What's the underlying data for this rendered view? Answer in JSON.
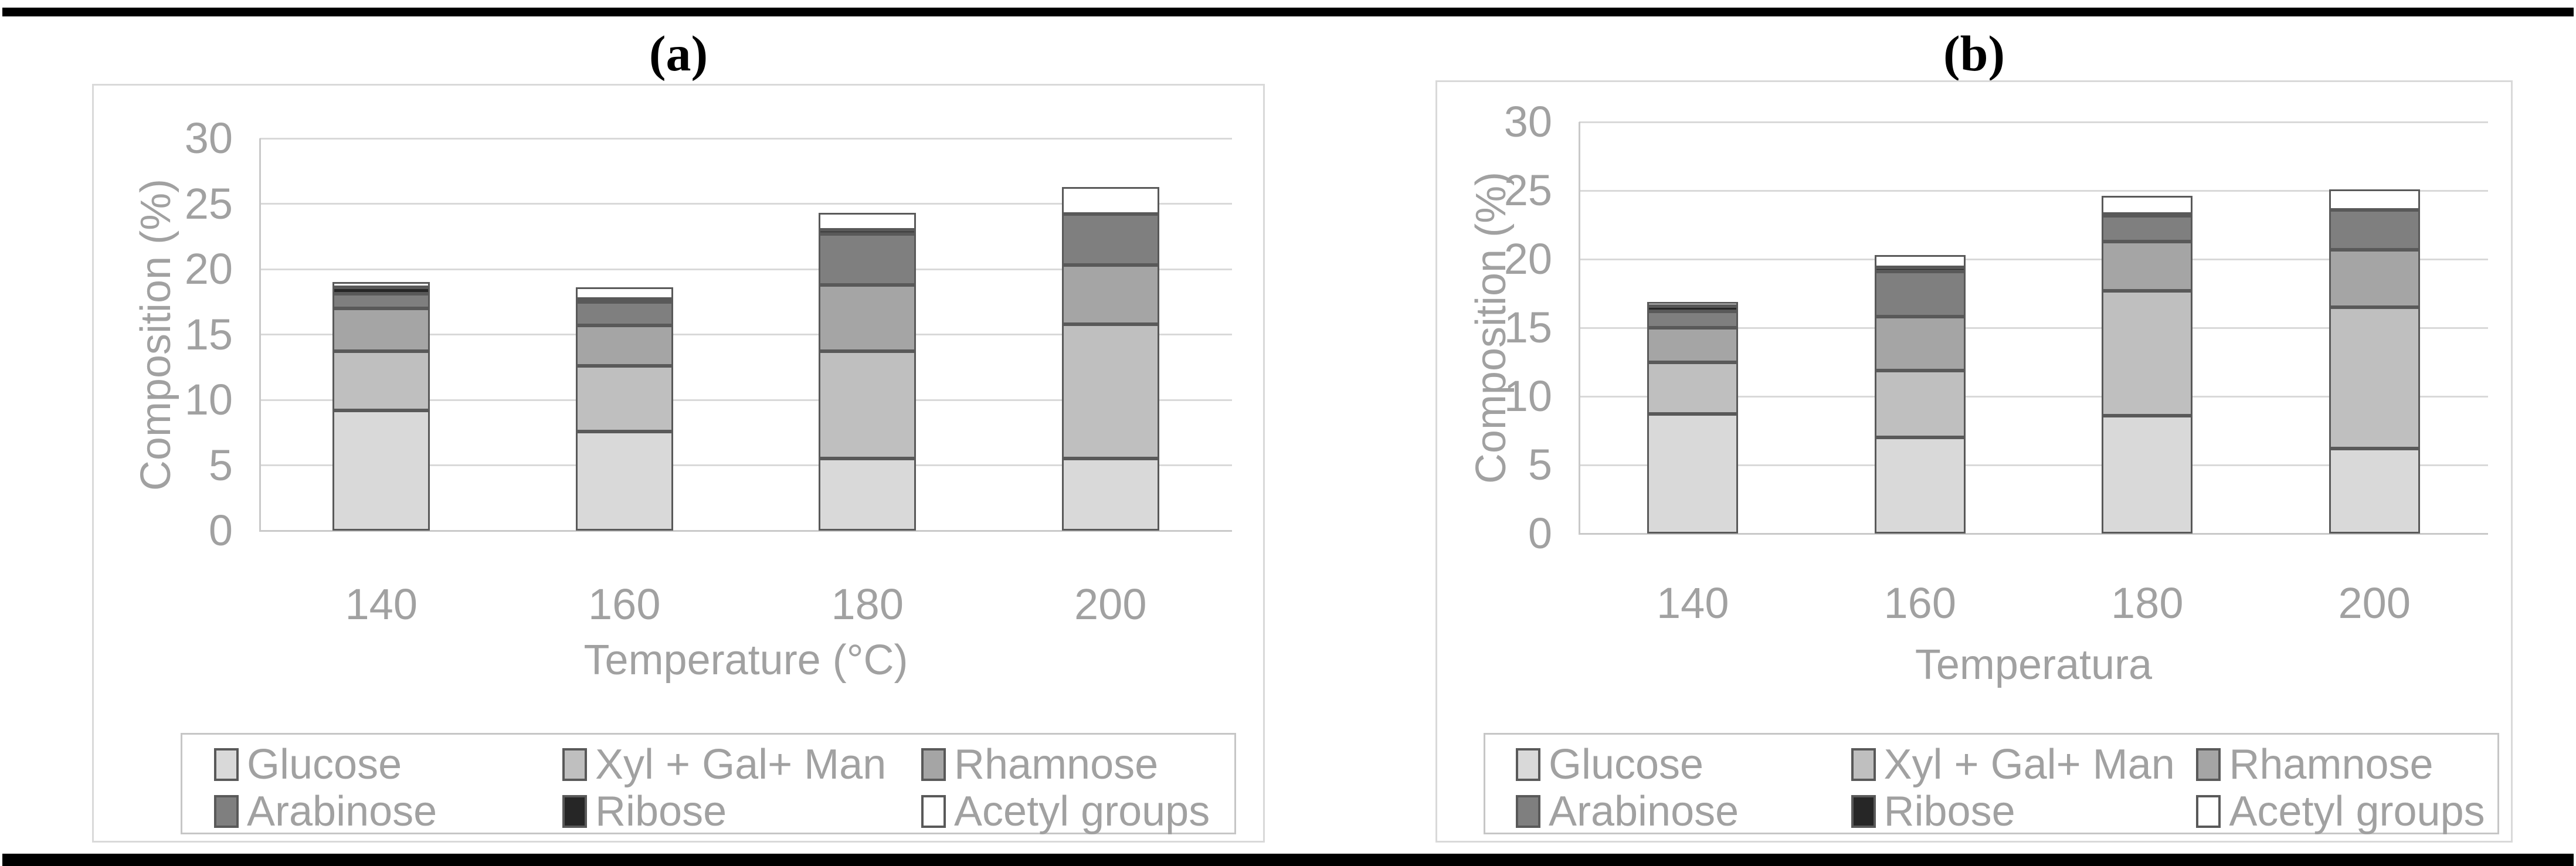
{
  "figure": {
    "background": "#ffffff",
    "top_rule_color": "#000000",
    "bottom_rule_color": "#000000",
    "text_color": "#a1a1a1"
  },
  "colors": {
    "segment_border": "#595959",
    "gridline": "#d9d9d9",
    "axis_line": "#c9c9c9",
    "panel_border": "#d9d9d9",
    "legend_border": "#c6c6c6",
    "panel_title_color": "#000000"
  },
  "chart_data": [
    {
      "type": "bar",
      "stacked": true,
      "panel_label": "(a)",
      "xlabel": "Temperature (°C)",
      "ylabel": "Composition (%)",
      "categories": [
        "140",
        "160",
        "180",
        "200"
      ],
      "ylim": [
        0,
        30
      ],
      "yticks": [
        0,
        5,
        10,
        15,
        20,
        25,
        30
      ],
      "grid": true,
      "legend_position": "bottom",
      "legend_columns": 3,
      "series": [
        {
          "name": "Glucose",
          "color": "#d9d9d9",
          "values": [
            9.2,
            7.6,
            5.5,
            5.5
          ]
        },
        {
          "name": "Xyl + Gal+ Man",
          "color": "#bfbfbf",
          "values": [
            4.5,
            5.0,
            8.2,
            10.3
          ]
        },
        {
          "name": "Rhamnose",
          "color": "#a5a5a5",
          "values": [
            3.3,
            3.1,
            5.1,
            4.5
          ]
        },
        {
          "name": "Arabinose",
          "color": "#7f7f7f",
          "values": [
            1.1,
            1.8,
            3.9,
            3.9
          ]
        },
        {
          "name": "Ribose",
          "color": "#262626",
          "values": [
            0.5,
            0.2,
            0.3,
            0
          ]
        },
        {
          "name": "Acetyl groups",
          "color": "#ffffff",
          "values": [
            0.4,
            0.9,
            1.3,
            2.1
          ]
        }
      ],
      "bar_totals": [
        19.0,
        18.6,
        24.3,
        26.3
      ]
    },
    {
      "type": "bar",
      "stacked": true,
      "panel_label": "(b)",
      "xlabel": "Temperatura",
      "ylabel": "Composition (%)",
      "categories": [
        "140",
        "160",
        "180",
        "200"
      ],
      "ylim": [
        0,
        30
      ],
      "yticks": [
        0,
        5,
        10,
        15,
        20,
        25,
        30
      ],
      "grid": true,
      "legend_position": "bottom",
      "legend_columns": 3,
      "series": [
        {
          "name": "Glucose",
          "color": "#d9d9d9",
          "values": [
            8.7,
            7.0,
            8.6,
            6.2
          ]
        },
        {
          "name": "Xyl + Gal+ Man",
          "color": "#bfbfbf",
          "values": [
            3.8,
            4.9,
            9.1,
            10.3
          ]
        },
        {
          "name": "Rhamnose",
          "color": "#a5a5a5",
          "values": [
            2.5,
            3.9,
            3.6,
            4.2
          ]
        },
        {
          "name": "Arabinose",
          "color": "#7f7f7f",
          "values": [
            1.2,
            3.3,
            1.9,
            2.9
          ]
        },
        {
          "name": "Ribose",
          "color": "#262626",
          "values": [
            0.4,
            0.3,
            0.1,
            0
          ]
        },
        {
          "name": "Acetyl groups",
          "color": "#ffffff",
          "values": [
            0.3,
            0.9,
            1.3,
            1.5
          ]
        }
      ],
      "bar_totals": [
        16.9,
        20.3,
        24.6,
        25.1
      ]
    }
  ]
}
